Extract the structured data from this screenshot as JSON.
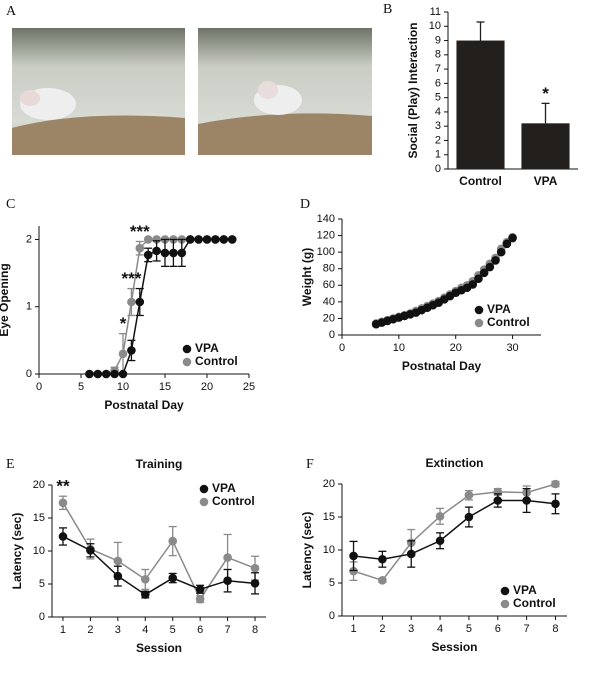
{
  "photo_panel": {
    "label": "A"
  },
  "chart_data": [
    {
      "type": "bar",
      "panel_label": "B",
      "ylabel": "Social (Play) Interaction",
      "categories": [
        "Control",
        "VPA"
      ],
      "values": [
        9.0,
        3.2
      ],
      "errors": [
        1.3,
        1.4
      ],
      "color": "#231f1c",
      "ylim": [
        0,
        11
      ],
      "yticks": [
        0,
        1,
        2,
        3,
        4,
        5,
        6,
        7,
        8,
        9,
        10,
        11
      ],
      "annotations": [
        {
          "text": "*",
          "x": "VPA"
        }
      ]
    },
    {
      "type": "line",
      "panel_label": "C",
      "xlabel": "Postnatal Day",
      "ylabel": "Eye Opening",
      "xlim": [
        0,
        25
      ],
      "xticks": [
        0,
        5,
        10,
        15,
        20,
        25
      ],
      "ylim": [
        0,
        2.2
      ],
      "yticks": [
        0,
        1,
        2
      ],
      "legend": "lower right",
      "x": [
        6,
        7,
        8,
        9,
        10,
        11,
        12,
        13,
        14,
        15,
        16,
        17,
        18,
        19,
        20,
        21,
        22,
        23
      ],
      "series": [
        {
          "name": "VPA",
          "color": "#111111",
          "values": [
            0,
            0,
            0,
            0,
            0,
            0.35,
            1.07,
            1.77,
            1.83,
            1.8,
            1.8,
            1.8,
            2,
            2,
            2,
            2,
            2,
            2
          ],
          "errors": [
            0,
            0,
            0,
            0,
            0,
            0.15,
            0.2,
            0.1,
            0.15,
            0.2,
            0.2,
            0.2,
            0,
            0,
            0,
            0,
            0,
            0
          ]
        },
        {
          "name": "Control",
          "color": "#8a8a8a",
          "values": [
            0,
            0,
            0,
            0.05,
            0.3,
            1.07,
            1.87,
            2,
            2,
            2,
            2,
            2,
            2,
            2,
            2,
            2,
            2,
            2
          ],
          "errors": [
            0,
            0,
            0,
            0.05,
            0.3,
            0.2,
            0.1,
            0,
            0,
            0,
            0,
            0,
            0,
            0,
            0,
            0,
            0,
            0
          ]
        }
      ],
      "annotations": [
        {
          "text": "*",
          "x": 10
        },
        {
          "text": "***",
          "x": 11
        },
        {
          "text": "***",
          "x": 12
        }
      ]
    },
    {
      "type": "scatter",
      "panel_label": "D",
      "xlabel": "Postnatal Day",
      "ylabel": "Weight (g)",
      "xlim": [
        0,
        35
      ],
      "xticks": [
        0,
        10,
        20,
        30
      ],
      "ylim": [
        0,
        140
      ],
      "yticks": [
        0,
        20,
        40,
        60,
        80,
        100,
        120,
        140
      ],
      "legend": "lower right",
      "x": [
        6,
        7,
        8,
        9,
        10,
        11,
        12,
        13,
        14,
        15,
        16,
        17,
        18,
        19,
        20,
        21,
        22,
        23,
        24,
        25,
        26,
        27,
        28,
        29,
        30
      ],
      "series": [
        {
          "name": "VPA",
          "color": "#111111",
          "values": [
            13,
            15,
            17,
            19,
            21,
            23,
            25,
            27,
            30,
            33,
            36,
            39,
            43,
            47,
            51,
            54,
            57,
            61,
            68,
            75,
            82,
            90,
            100,
            110,
            117
          ]
        },
        {
          "name": "Control",
          "color": "#8a8a8a",
          "values": [
            14,
            16,
            18,
            20,
            22,
            24,
            26,
            29,
            32,
            35,
            38,
            41,
            45,
            49,
            53,
            57,
            60,
            65,
            72,
            79,
            86,
            93,
            104,
            112,
            118
          ]
        }
      ]
    },
    {
      "type": "line",
      "panel_label": "E",
      "title": "Training",
      "xlabel": "Session",
      "ylabel": "Latency (sec)",
      "xlim": [
        0.6,
        8.4
      ],
      "xticks": [
        1,
        2,
        3,
        4,
        5,
        6,
        7,
        8
      ],
      "ylim": [
        0,
        20
      ],
      "yticks": [
        0,
        5,
        10,
        15,
        20
      ],
      "legend": "upper right",
      "x": [
        1,
        2,
        3,
        4,
        5,
        6,
        7,
        8
      ],
      "series": [
        {
          "name": "VPA",
          "color": "#111111",
          "values": [
            12.2,
            10.1,
            6.2,
            3.4,
            5.9,
            4.2,
            5.5,
            5.1
          ],
          "errors": [
            1.3,
            1.0,
            1.5,
            0.5,
            0.7,
            0.6,
            1.7,
            1.6
          ]
        },
        {
          "name": "Control",
          "color": "#8a8a8a",
          "values": [
            17.3,
            10.3,
            8.5,
            5.7,
            11.5,
            2.7,
            9.0,
            7.4
          ],
          "errors": [
            1.0,
            1.5,
            2.8,
            1.5,
            2.2,
            0.5,
            3.5,
            1.8
          ]
        }
      ],
      "annotations": [
        {
          "text": "**",
          "x": 1
        }
      ]
    },
    {
      "type": "line",
      "panel_label": "F",
      "title": "Extinction",
      "xlabel": "Session",
      "ylabel": "Latency (sec)",
      "xlim": [
        0.6,
        8.4
      ],
      "xticks": [
        1,
        2,
        3,
        4,
        5,
        6,
        7,
        8
      ],
      "ylim": [
        0,
        20
      ],
      "yticks": [
        0,
        5,
        10,
        15,
        20
      ],
      "legend": "lower right",
      "x": [
        1,
        2,
        3,
        4,
        5,
        6,
        7,
        8
      ],
      "series": [
        {
          "name": "VPA",
          "color": "#111111",
          "values": [
            9.1,
            8.6,
            9.4,
            11.4,
            15.0,
            17.5,
            17.5,
            17.0
          ],
          "errors": [
            2.2,
            1.2,
            2.0,
            1.2,
            1.5,
            1.0,
            1.8,
            1.5
          ]
        },
        {
          "name": "Control",
          "color": "#8a8a8a",
          "values": [
            6.8,
            5.4,
            11.1,
            15.1,
            18.3,
            18.8,
            18.7,
            20.0
          ],
          "errors": [
            1.4,
            0.3,
            2.0,
            1.2,
            0.7,
            0.5,
            1.0,
            0.4
          ]
        }
      ]
    }
  ]
}
